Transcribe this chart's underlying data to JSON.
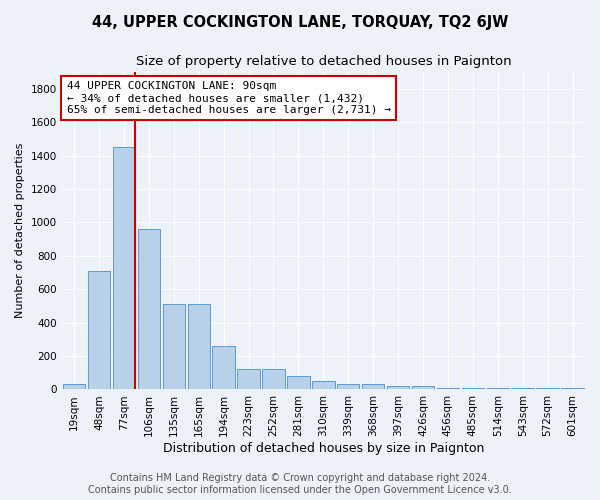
{
  "title": "44, UPPER COCKINGTON LANE, TORQUAY, TQ2 6JW",
  "subtitle": "Size of property relative to detached houses in Paignton",
  "xlabel": "Distribution of detached houses by size in Paignton",
  "ylabel": "Number of detached properties",
  "categories": [
    "19sqm",
    "48sqm",
    "77sqm",
    "106sqm",
    "135sqm",
    "165sqm",
    "194sqm",
    "223sqm",
    "252sqm",
    "281sqm",
    "310sqm",
    "339sqm",
    "368sqm",
    "397sqm",
    "426sqm",
    "456sqm",
    "485sqm",
    "514sqm",
    "543sqm",
    "572sqm",
    "601sqm"
  ],
  "values": [
    30,
    710,
    1450,
    960,
    510,
    510,
    260,
    120,
    120,
    80,
    50,
    30,
    30,
    20,
    20,
    10,
    10,
    10,
    10,
    10,
    10
  ],
  "bar_color": "#b8d0e8",
  "bar_edge_color": "#5b9bd5",
  "vline_color": "#cc0000",
  "annotation_text": "44 UPPER COCKINGTON LANE: 90sqm\n← 34% of detached houses are smaller (1,432)\n65% of semi-detached houses are larger (2,731) →",
  "annotation_box_color": "#ffffff",
  "annotation_box_edge": "#cc0000",
  "annotation_fontsize": 8.0,
  "ylim": [
    0,
    1900
  ],
  "yticks": [
    0,
    200,
    400,
    600,
    800,
    1000,
    1200,
    1400,
    1600,
    1800
  ],
  "bg_color": "#edf1f8",
  "plot_bg_color": "#edf1f8",
  "footer_text": "Contains HM Land Registry data © Crown copyright and database right 2024.\nContains public sector information licensed under the Open Government Licence v3.0.",
  "title_fontsize": 10.5,
  "subtitle_fontsize": 9.5,
  "xlabel_fontsize": 9,
  "ylabel_fontsize": 8,
  "footer_fontsize": 7,
  "grid_color": "#ffffff",
  "tick_fontsize": 7.5
}
